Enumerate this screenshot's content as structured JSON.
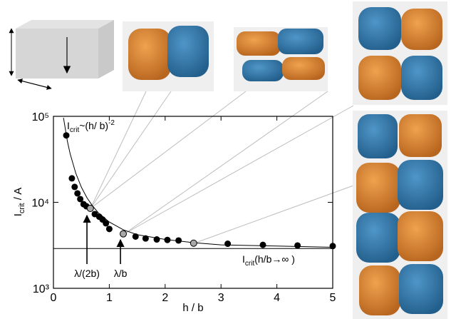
{
  "chart_data": {
    "type": "scatter",
    "x": [
      0.23,
      0.33,
      0.38,
      0.43,
      0.48,
      0.54,
      0.59,
      0.66,
      0.74,
      0.82,
      0.88,
      0.94,
      1.0,
      1.25,
      1.47,
      1.65,
      1.85,
      2.04,
      2.24,
      2.51,
      3.12,
      3.75,
      4.37,
      5.0
    ],
    "values": [
      60000,
      19000,
      15100,
      12700,
      10900,
      9500,
      9000,
      8500,
      7300,
      6800,
      6300,
      5700,
      4900,
      4300,
      4000,
      3800,
      3700,
      3650,
      3600,
      3350,
      3300,
      3200,
      3150,
      3100
    ],
    "color": "#000000",
    "highlight_color": "#a8a8a8",
    "highlighted": [
      7,
      13,
      19
    ],
    "curve": {
      "x": [
        0.18,
        0.25,
        0.3,
        0.4,
        0.5,
        0.6,
        0.7,
        0.8,
        1.0,
        1.25,
        1.5,
        2.0,
        2.5,
        3.0,
        4.0,
        5.0
      ],
      "values": [
        96100,
        51200,
        36500,
        21800,
        15000,
        11300,
        9100,
        7600,
        5900,
        4800,
        4200,
        3700,
        3400,
        3200,
        3100,
        3000
      ],
      "color": "#000000"
    },
    "asymptote": 2900,
    "log_y": true,
    "xlim": [
      0,
      5
    ],
    "ylim": [
      1000,
      100000
    ],
    "xticks": [
      0,
      1,
      2,
      3,
      4,
      5
    ],
    "yticks": [
      {
        "value": 1000,
        "label": "10³"
      },
      {
        "value": 10000,
        "label": "10⁴"
      },
      {
        "value": 100000,
        "label": "10⁵"
      }
    ],
    "x_label": "h / b",
    "y_label": [
      "I",
      "crit",
      " / A"
    ],
    "fit_label": [
      "I",
      "crit",
      "~(h/ b)",
      "-2"
    ],
    "asymptote_label": [
      "I",
      "crit",
      "(h/b→∞ )"
    ],
    "arrows": [
      {
        "x": 0.6,
        "label": "λ/(2b)"
      },
      {
        "x": 1.2,
        "label": "λ/b"
      }
    ],
    "inset_labels": [
      "h",
      "l",
      "b"
    ]
  }
}
